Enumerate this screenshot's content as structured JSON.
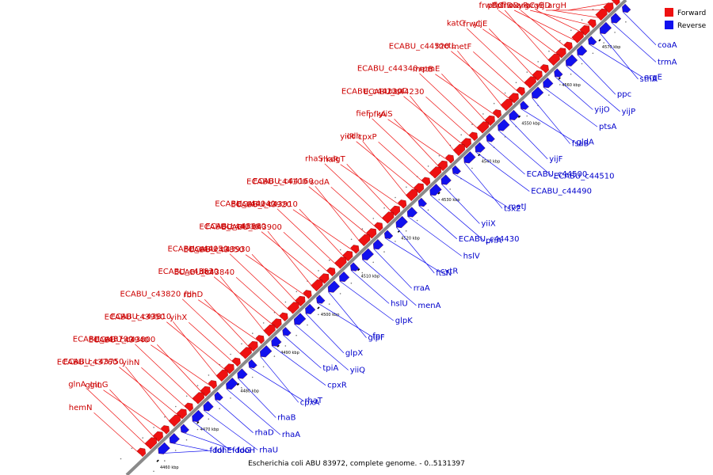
{
  "caption": "Escherichia coli ABU 83972, complete genome. - 0..5131397",
  "legend": [
    {
      "label": "Forward",
      "color": "#ee1111"
    },
    {
      "label": "Reverse",
      "color": "#1111ee"
    }
  ],
  "colors": {
    "forward": "#ee1111",
    "reverse": "#1111ee",
    "axis": "#888888"
  },
  "ticks": [
    "4460 kbp",
    "4470 kbp",
    "4480 kbp",
    "4490 kbp",
    "4500 kbp",
    "4510 kbp",
    "4520 kbp",
    "4530 kbp",
    "4540 kbp",
    "4550 kbp",
    "4560 kbp",
    "4570 kbp"
  ],
  "forward_labels": [
    "argH",
    "argB",
    "yijD",
    "oxyR",
    "argC",
    "pflD",
    "frwD",
    "frwB",
    "pflC",
    "frwC",
    "yijE",
    "katG",
    "metF",
    "ECABU_c44520",
    "metL",
    "metB",
    "rpmE",
    "ECABU_c44340",
    "ECABU_c44230",
    "ECABU_c44220",
    "uspD",
    "pfkA",
    "yiiS",
    "fieF",
    "cpxP",
    "yiiR",
    "cdh",
    "rhaR",
    "kdgT",
    "rhaS",
    "sodA",
    "ECABU_c44100",
    "ECABU_c44160",
    "ECABU_c43920",
    "ECABU_c43910",
    "ECABU_c44040",
    "ECABU_c43900",
    "ECABU_c44030",
    "ECABU_c43860",
    "ECABU_c43850",
    "ECABU_c43930",
    "ECABU_c44050",
    "ECABU_c43840",
    "dtd",
    "ECABU_c43830",
    "rbn",
    "fdhD",
    "ECABU_c43820",
    "yihX",
    "ECABU_c43950",
    "ECABU_c43810",
    "ECABU_c43940",
    "ECABU_c43800",
    "ECABU_c43790",
    "yihN",
    "ECABU_c43760",
    "ECABU_c43750",
    "glnL",
    "glnG",
    "glnA",
    "hemN"
  ],
  "reverse_labels": [
    "coaA",
    "trmA",
    "sthA",
    "argE",
    "ppc",
    "yijP",
    "yijO",
    "ptsA",
    "fsaB",
    "gldA",
    "yijF",
    "ECABU_c44510",
    "ECABU_c44500",
    "ECABU_c44490",
    "tsx2",
    "metJ",
    "yiiX",
    "priA",
    "ECABU_c44430",
    "hslV",
    "ftsN",
    "cytR",
    "rraA",
    "menA",
    "hslU",
    "glpK",
    "glpF",
    "fpr",
    "glpX",
    "yiiQ",
    "tpiA",
    "cpxR",
    "cpxA",
    "rhaT",
    "rhaB",
    "rhaA",
    "rhaD",
    "rhaU",
    "fdoG",
    "fdoH",
    "fdoI",
    "fdhE"
  ]
}
